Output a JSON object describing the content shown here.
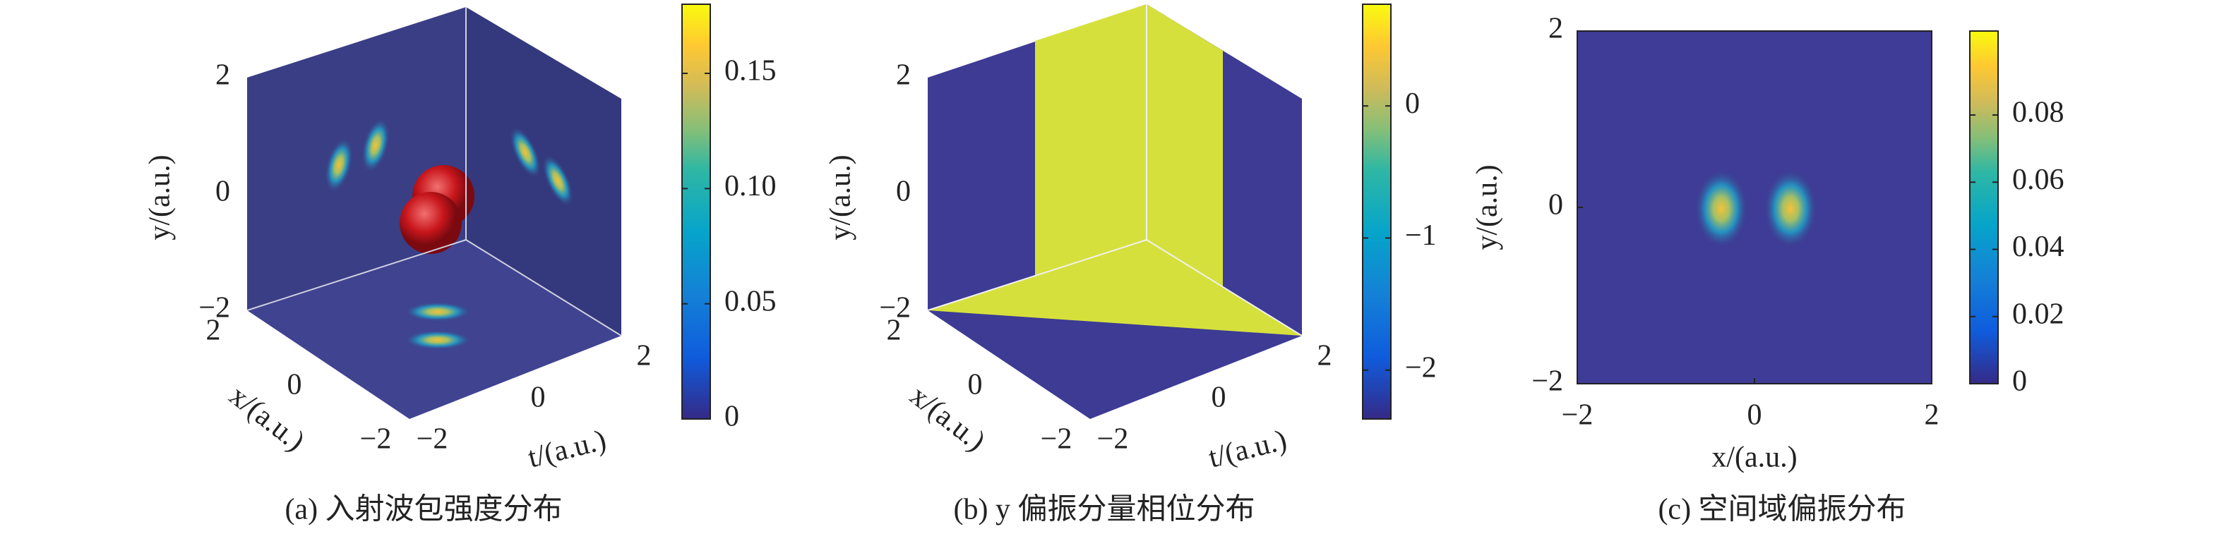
{
  "chart_data": [
    {
      "type": "volume",
      "caption": "(a) 入射波包强度分布",
      "xlabel": "x/(a.u.)",
      "ylabel": "y/(a.u.)",
      "tlabel": "t/(a.u.)",
      "xlim": [
        -2,
        2
      ],
      "xticks": [
        {
          "value": -2,
          "label": "−2"
        },
        0,
        2
      ],
      "ylim": [
        -2,
        2
      ],
      "yticks": [
        {
          "value": -2,
          "label": "−2"
        },
        0,
        2
      ],
      "tlim": [
        -2,
        2
      ],
      "tticks": [
        {
          "value": -2,
          "label": "−2"
        },
        0,
        2
      ],
      "colorbar": {
        "clim": [
          0,
          0.18
        ],
        "ticks": [
          0,
          0.05,
          {
            "value": 0.1,
            "label": "0.10"
          },
          0.15
        ]
      }
    },
    {
      "type": "volume",
      "caption": "(b) y 偏振分量相位分布",
      "xlabel": "x/(a.u.)",
      "ylabel": "y/(a.u.)",
      "tlabel": "t/(a.u.)",
      "xlim": [
        -2,
        2
      ],
      "xticks": [
        {
          "value": -2,
          "label": "−2"
        },
        0,
        2
      ],
      "ylim": [
        -2,
        2
      ],
      "yticks": [
        {
          "value": -2,
          "label": "−2"
        },
        0,
        2
      ],
      "tlim": [
        -2,
        2
      ],
      "tticks": [
        {
          "value": -2,
          "label": "−2"
        },
        0,
        2
      ],
      "colorbar": {
        "clim": [
          -2.37,
          0.77
        ],
        "ticks": [
          {
            "value": -2,
            "label": "−2"
          },
          {
            "value": -1,
            "label": "−1"
          },
          0
        ]
      }
    },
    {
      "type": "heatmap",
      "caption": "(c) 空间域偏振分布",
      "xlabel": "x/(a.u.)",
      "ylabel": "y/(a.u.)",
      "xlim": [
        -2,
        2
      ],
      "xticks": [
        {
          "value": -2,
          "label": "−2"
        },
        0,
        2
      ],
      "ylim": [
        -2,
        2
      ],
      "yticks": [
        {
          "value": -2,
          "label": "−2"
        },
        0,
        2
      ],
      "colorbar": {
        "clim": [
          0,
          0.105
        ],
        "ticks": [
          0,
          0.02,
          0.04,
          0.06,
          0.08
        ]
      }
    }
  ]
}
